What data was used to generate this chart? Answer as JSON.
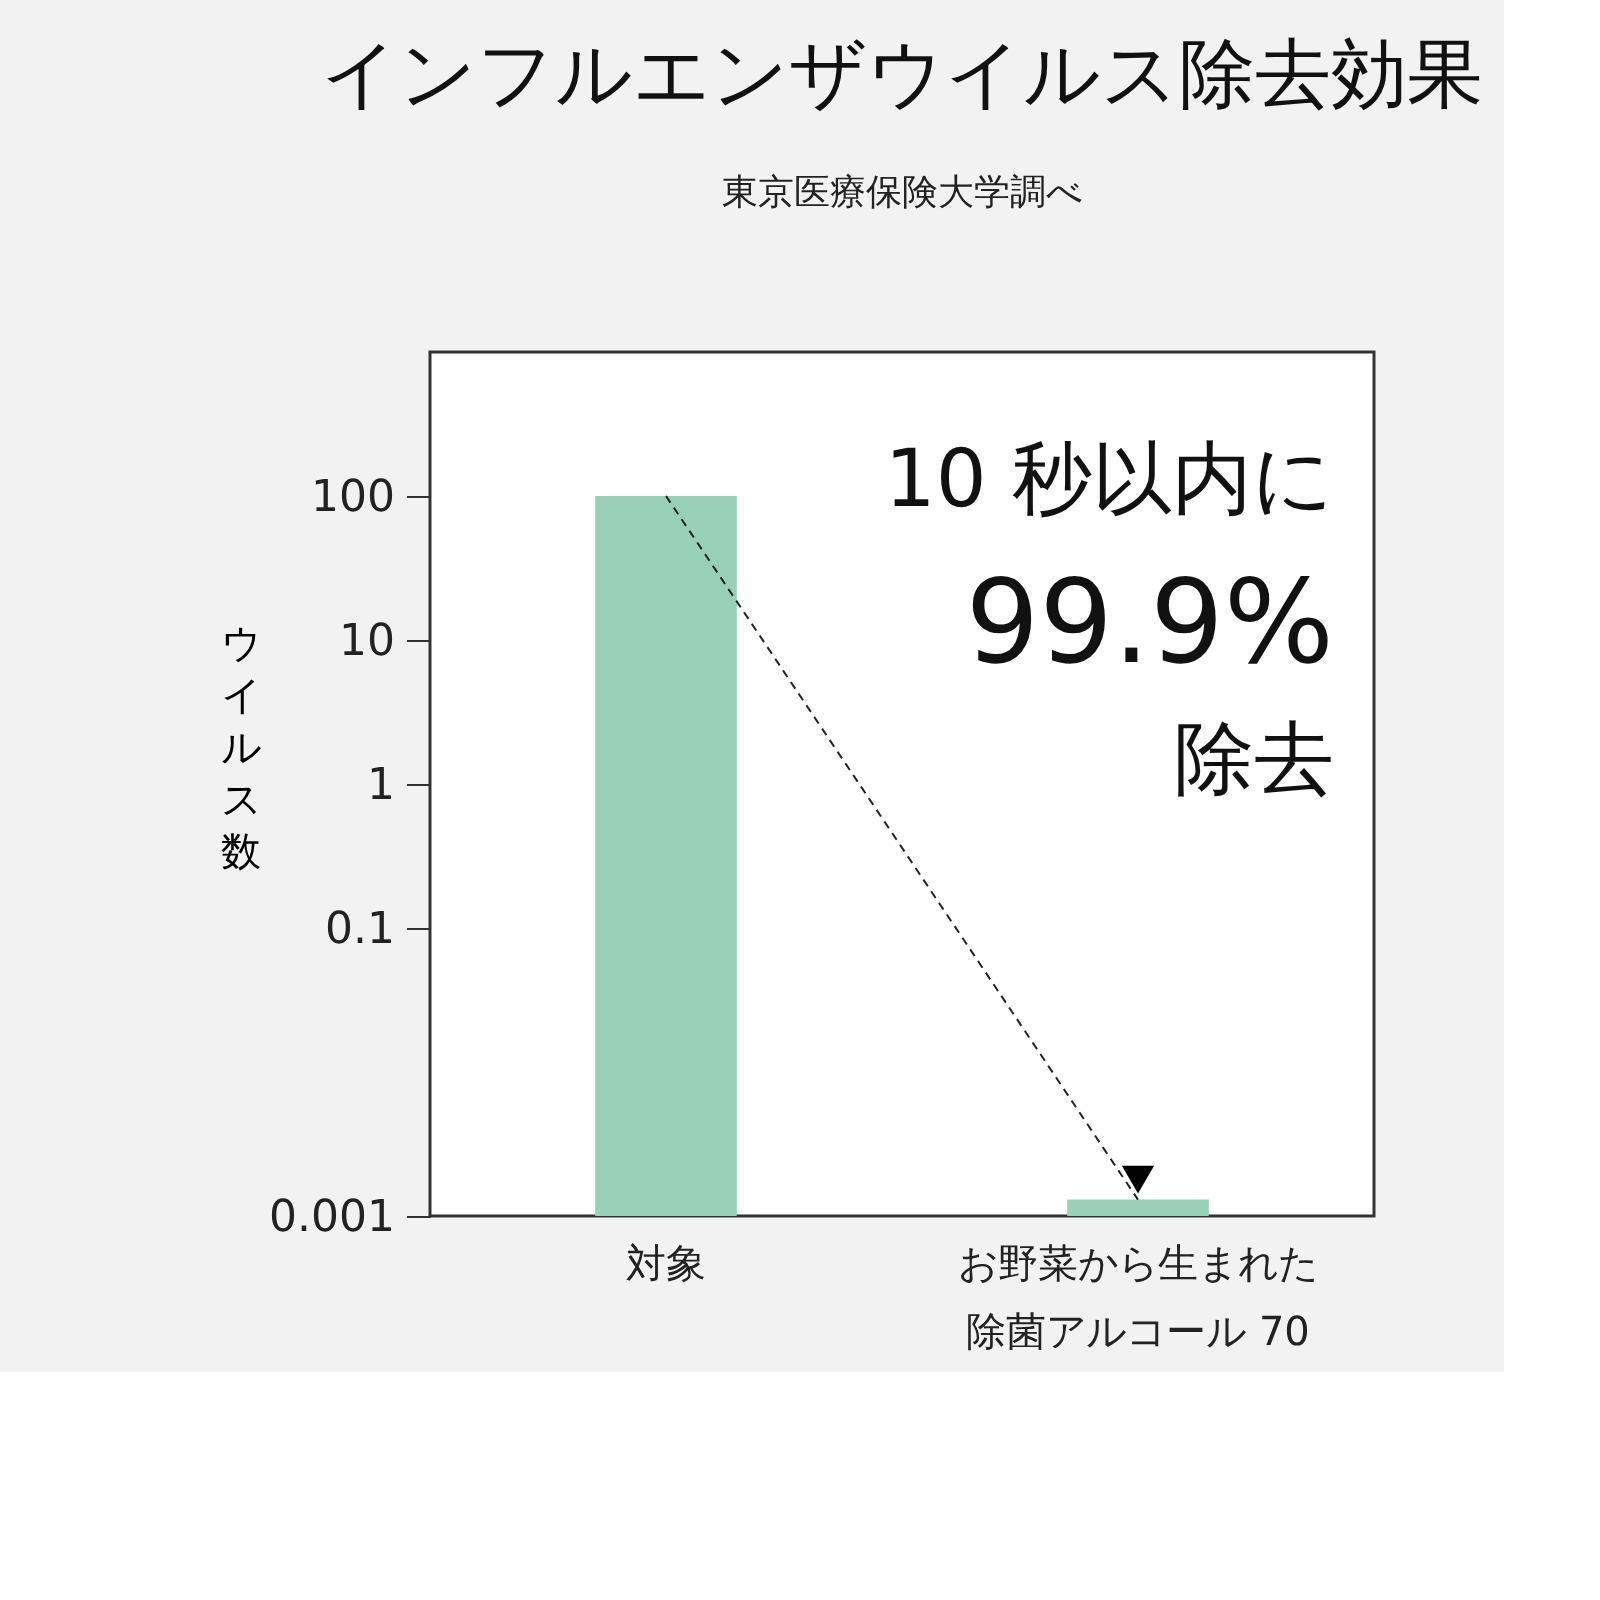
{
  "chart_data": {
    "type": "bar",
    "title": "インフルエンザウイルス除去効果",
    "subtitle": "東京医療保険大学調べ",
    "ylabel": "ウイルス数",
    "categories": [
      "対象",
      "お野菜から生まれた除菌アルコール 70"
    ],
    "values": [
      100,
      0.0013
    ],
    "color": "#97d0b6",
    "log": true,
    "ylim": [
      0.001,
      1000
    ],
    "yticks": [
      100,
      10,
      1,
      0.1,
      0.001
    ],
    "grid": false,
    "annotations": [
      "10 秒以内に",
      "99.9%",
      "除去"
    ]
  }
}
